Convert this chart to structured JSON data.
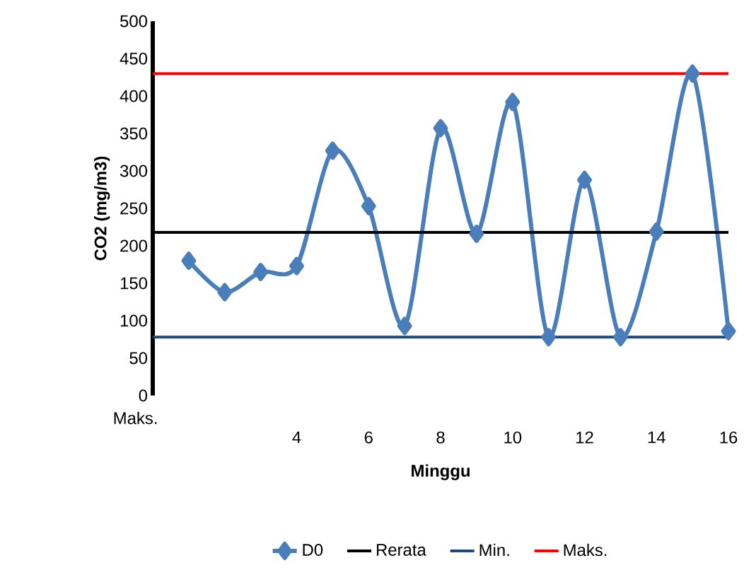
{
  "chart_data": {
    "type": "line",
    "xlabel": "Minggu",
    "ylabel": "CO2 (mg/m3)",
    "categories": [
      null,
      null,
      null,
      "4",
      null,
      "6",
      null,
      "8",
      null,
      "10",
      null,
      "12",
      null,
      "14",
      null,
      "16"
    ],
    "series": [
      {
        "name": "D0",
        "color": "#4a7ebb",
        "values": [
          180,
          138,
          165,
          173,
          327,
          253,
          93,
          357,
          216,
          392,
          78,
          288,
          78,
          219,
          430,
          86
        ]
      }
    ],
    "ref_lines": [
      {
        "axis": "y",
        "value": 218,
        "label": "Rerata",
        "color": "#000000"
      },
      {
        "axis": "y",
        "value": 78,
        "label": "Min.",
        "color": "#1f497d"
      },
      {
        "axis": "y",
        "value": 430,
        "label": "Maks.",
        "color": "#ff0000"
      }
    ],
    "annotations": [
      "Maks."
    ],
    "ylim": [
      0,
      500
    ],
    "yticks": [
      0,
      50,
      100,
      150,
      200,
      250,
      300,
      350,
      400,
      450,
      500
    ],
    "marker": "diamond",
    "line_style": "solid",
    "grid": false,
    "legend": "bottom"
  }
}
